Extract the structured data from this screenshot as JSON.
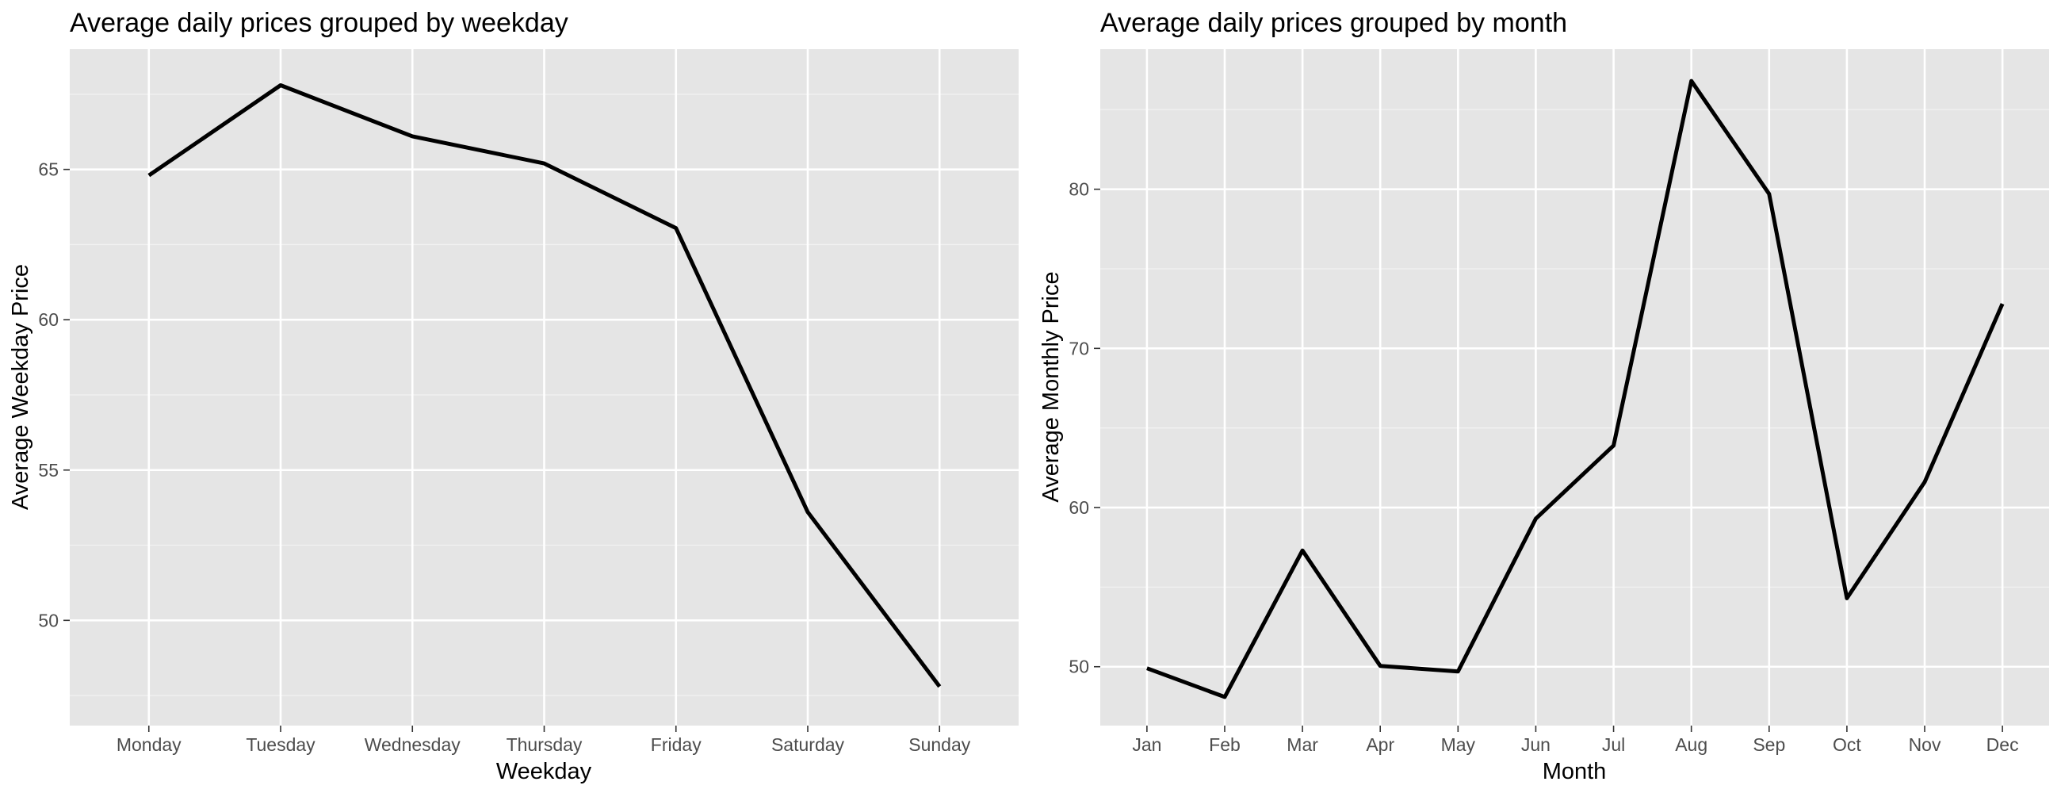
{
  "chart_data": [
    {
      "type": "line",
      "title": "Average daily prices grouped by weekday",
      "xlabel": "Weekday",
      "ylabel": "Average Weekday Price",
      "categories": [
        "Monday",
        "Tuesday",
        "Wednesday",
        "Thursday",
        "Friday",
        "Saturday",
        "Sunday"
      ],
      "values": [
        64.8,
        67.8,
        66.1,
        65.2,
        63.05,
        53.6,
        47.8
      ],
      "ylim": [
        46.5,
        69.0
      ],
      "yticks": [
        50,
        55,
        60,
        65
      ],
      "ytick_labels": [
        "50",
        "55",
        "60",
        "65"
      ],
      "grid": true,
      "line_color": "#000000",
      "panel_color": "#e5e5e5"
    },
    {
      "type": "line",
      "title": "Average daily prices grouped by month",
      "xlabel": "Month",
      "ylabel": "Average Monthly Price",
      "categories": [
        "Jan",
        "Feb",
        "Mar",
        "Apr",
        "May",
        "Jun",
        "Jul",
        "Aug",
        "Sep",
        "Oct",
        "Nov",
        "Dec"
      ],
      "values": [
        49.9,
        48.1,
        57.3,
        50.05,
        49.7,
        59.3,
        63.9,
        86.8,
        79.7,
        54.3,
        61.6,
        72.8
      ],
      "ylim": [
        46.3,
        88.8
      ],
      "yticks": [
        50,
        60,
        70,
        80
      ],
      "ytick_labels": [
        "50",
        "60",
        "70",
        "80"
      ],
      "grid": true,
      "line_color": "#000000",
      "panel_color": "#e5e5e5"
    }
  ]
}
